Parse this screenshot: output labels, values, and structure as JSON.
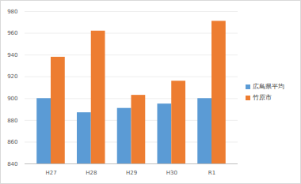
{
  "chart_data": {
    "type": "bar",
    "categories": [
      "H27",
      "H28",
      "H29",
      "H30",
      "R1"
    ],
    "series": [
      {
        "name": "広島県平均",
        "color": "#5b9bd5",
        "values": [
          900,
          887,
          891,
          895,
          900
        ]
      },
      {
        "name": "竹原市",
        "color": "#ed7d31",
        "values": [
          938,
          962,
          903,
          916,
          971
        ]
      }
    ],
    "ylim": [
      840,
      980
    ],
    "yticks": [
      840,
      860,
      880,
      900,
      920,
      940,
      960,
      980
    ],
    "grid": true,
    "legend": "right"
  }
}
